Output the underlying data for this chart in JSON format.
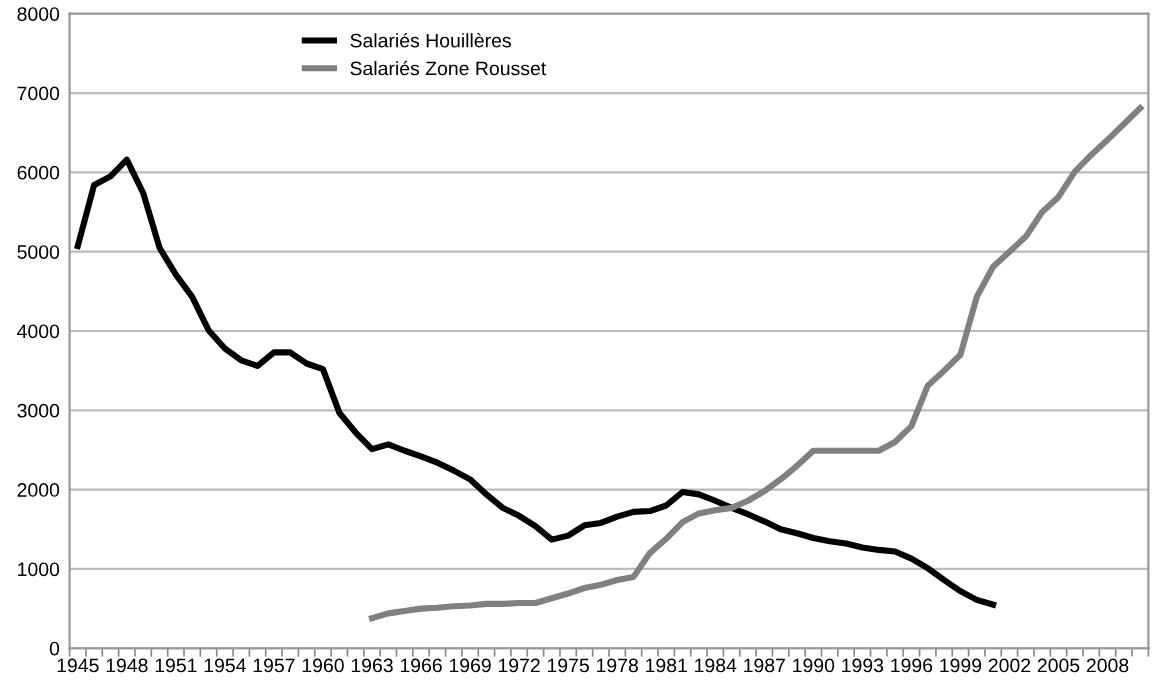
{
  "chart_data": {
    "type": "line",
    "categories": [
      "1945",
      null,
      null,
      "1948",
      null,
      null,
      "1951",
      null,
      null,
      "1954",
      null,
      null,
      "1957",
      null,
      null,
      "1960",
      null,
      null,
      "1963",
      null,
      null,
      "1966",
      null,
      null,
      "1969",
      null,
      null,
      "1972",
      null,
      null,
      "1975",
      null,
      null,
      "1978",
      null,
      null,
      "1981",
      null,
      null,
      "1984",
      null,
      null,
      "1987",
      null,
      null,
      "1990",
      null,
      null,
      "1993",
      null,
      null,
      "1996",
      null,
      null,
      "1999",
      null,
      null,
      "2002",
      null,
      null,
      "2005",
      null,
      null,
      "2008",
      null,
      null
    ],
    "series": [
      {
        "name": "Salariés Houillères",
        "color": "#000000",
        "values": [
          5070,
          5840,
          5950,
          6160,
          5740,
          5050,
          4710,
          4430,
          4010,
          3780,
          3630,
          3560,
          3730,
          3730,
          3590,
          3520,
          2970,
          2720,
          2510,
          2570,
          2490,
          2420,
          2340,
          2240,
          2130,
          1940,
          1770,
          1670,
          1540,
          1370,
          1420,
          1550,
          1580,
          1660,
          1720,
          1730,
          1800,
          1970,
          1940,
          1860,
          1770,
          1690,
          1600,
          1500,
          1450,
          1390,
          1350,
          1320,
          1270,
          1240,
          1220,
          1130,
          1010,
          860,
          720,
          610,
          550,
          null,
          null,
          null,
          null,
          null,
          null,
          null,
          null,
          null
        ]
      },
      {
        "name": "Salariés Zone Rousset",
        "color": "#808080",
        "values": [
          null,
          null,
          null,
          null,
          null,
          null,
          null,
          null,
          null,
          null,
          null,
          null,
          null,
          null,
          null,
          null,
          null,
          null,
          380,
          440,
          470,
          500,
          510,
          530,
          540,
          560,
          560,
          570,
          570,
          630,
          690,
          760,
          800,
          860,
          900,
          1200,
          1380,
          1590,
          1700,
          1740,
          1770,
          1860,
          1980,
          2130,
          2300,
          2490,
          2490,
          2490,
          2490,
          2490,
          2600,
          2800,
          3310,
          3500,
          3700,
          4430,
          4810,
          5000,
          5190,
          5500,
          5690,
          6010,
          6220,
          6410,
          6610,
          6810
        ]
      }
    ],
    "ylim": [
      0,
      8000
    ],
    "yticks": [
      0,
      1000,
      2000,
      3000,
      4000,
      5000,
      6000,
      7000,
      8000
    ],
    "grid": "y",
    "legend": "top left",
    "marker": "none",
    "line_style": "solid"
  }
}
